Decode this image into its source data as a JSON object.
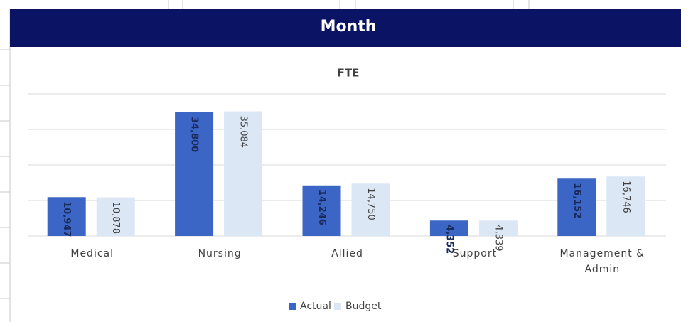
{
  "header": {
    "title": "Month"
  },
  "chart_data": {
    "type": "bar",
    "title": "FTE",
    "categories": [
      "Medical",
      "Nursing",
      "Allied",
      "Support",
      "Management & Admin"
    ],
    "series": [
      {
        "name": "Actual",
        "color": "#3b66c6",
        "values": [
          10947,
          34800,
          14246,
          4352,
          16152
        ],
        "value_labels": [
          "10,947",
          "34,800",
          "14,246",
          "4,352",
          "16,152"
        ]
      },
      {
        "name": "Budget",
        "color": "#dbe7f5",
        "values": [
          10878,
          35084,
          14750,
          4339,
          16746
        ],
        "value_labels": [
          "10,878",
          "35,084",
          "14,750",
          "4,339",
          "16,746"
        ]
      }
    ],
    "ylim": [
      0,
      40000
    ],
    "yticks": [
      0,
      10000,
      20000,
      30000,
      40000
    ],
    "grid": true,
    "legend": "bottom"
  }
}
